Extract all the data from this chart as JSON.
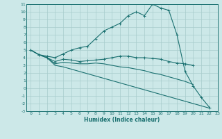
{
  "xlabel": "Humidex (Indice chaleur)",
  "bg_color": "#cce8e8",
  "line_color": "#1a7070",
  "grid_color": "#a8cccc",
  "xlim": [
    -0.5,
    23
  ],
  "ylim": [
    -3,
    11
  ],
  "xticks": [
    0,
    1,
    2,
    3,
    4,
    5,
    6,
    7,
    8,
    9,
    10,
    11,
    12,
    13,
    14,
    15,
    16,
    17,
    18,
    19,
    20,
    21,
    22,
    23
  ],
  "yticks": [
    -3,
    -2,
    -1,
    0,
    1,
    2,
    3,
    4,
    5,
    6,
    7,
    8,
    9,
    10,
    11
  ],
  "series": {
    "upper": {
      "x": [
        0,
        1,
        2,
        3,
        4,
        5,
        6,
        7,
        8,
        9,
        10,
        11,
        12,
        13,
        14,
        15,
        16,
        17,
        18,
        19,
        20,
        21,
        22,
        23
      ],
      "y": [
        5.0,
        4.4,
        4.2,
        4.0,
        4.5,
        5.0,
        5.3,
        5.5,
        6.5,
        7.5,
        8.0,
        8.5,
        9.5,
        10.0,
        9.5,
        11.0,
        10.5,
        10.2,
        7.0,
        2.2,
        0.3,
        -1.2,
        -2.5,
        null
      ],
      "marker": true
    },
    "mid1": {
      "x": [
        0,
        1,
        2,
        3,
        4,
        5,
        6,
        7,
        8,
        9,
        10,
        11,
        12,
        13,
        14,
        15,
        16,
        17,
        18,
        19,
        20,
        21,
        22,
        23
      ],
      "y": [
        5.0,
        4.4,
        4.0,
        3.5,
        3.8,
        3.7,
        3.5,
        3.6,
        3.7,
        3.8,
        4.0,
        4.2,
        4.2,
        4.0,
        4.0,
        3.9,
        3.8,
        3.5,
        3.3,
        3.2,
        3.0,
        null,
        null,
        null
      ],
      "marker": true
    },
    "mid2": {
      "x": [
        0,
        1,
        2,
        3,
        4,
        5,
        6,
        7,
        8,
        9,
        10,
        11,
        12,
        13,
        14,
        15,
        16,
        17,
        18,
        19,
        20,
        21,
        22,
        23
      ],
      "y": [
        5.0,
        4.4,
        4.0,
        3.2,
        3.4,
        3.3,
        3.2,
        3.2,
        3.3,
        3.2,
        3.0,
        2.8,
        2.7,
        2.5,
        2.3,
        2.0,
        1.8,
        1.5,
        1.2,
        0.9,
        0.5,
        null,
        null,
        null
      ],
      "marker": false
    },
    "lower": {
      "x": [
        0,
        1,
        2,
        3,
        4,
        5,
        6,
        7,
        8,
        9,
        10,
        11,
        12,
        13,
        14,
        15,
        16,
        17,
        18,
        19,
        20,
        21,
        22,
        23
      ],
      "y": [
        5.0,
        4.4,
        4.0,
        3.0,
        2.8,
        2.5,
        2.2,
        1.9,
        1.6,
        1.3,
        1.0,
        0.7,
        0.4,
        0.1,
        -0.2,
        -0.5,
        -0.8,
        -1.1,
        -1.4,
        -1.7,
        -2.0,
        -2.3,
        -2.6,
        null
      ],
      "marker": false
    }
  }
}
